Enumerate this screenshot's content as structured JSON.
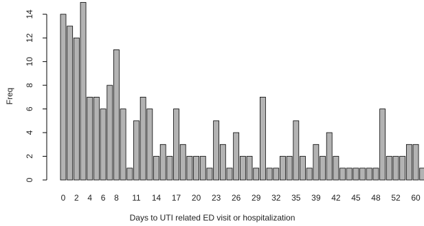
{
  "chart_data": {
    "type": "bar",
    "x_label": "Days to UTI related ED visit or hospitalization",
    "y_label": "Freq",
    "categories": [
      "0",
      null,
      "2",
      null,
      "4",
      null,
      "6",
      null,
      "8",
      null,
      null,
      "11",
      null,
      null,
      "14",
      null,
      null,
      "17",
      null,
      null,
      "20",
      null,
      null,
      "23",
      null,
      null,
      "26",
      null,
      null,
      "29",
      null,
      null,
      "32",
      null,
      null,
      "35",
      null,
      null,
      "39",
      null,
      null,
      "42",
      null,
      null,
      "45",
      null,
      null,
      "48",
      null,
      null,
      "52",
      null,
      null,
      "60",
      null
    ],
    "values": [
      14,
      13,
      12,
      15,
      7,
      7,
      6,
      8,
      11,
      6,
      1,
      5,
      7,
      6,
      2,
      3,
      2,
      6,
      3,
      2,
      2,
      2,
      1,
      5,
      3,
      1,
      4,
      2,
      2,
      1,
      7,
      1,
      1,
      2,
      2,
      5,
      2,
      1,
      3,
      2,
      4,
      2,
      1,
      1,
      1,
      1,
      1,
      1,
      6,
      2,
      2,
      2,
      3,
      3,
      1
    ],
    "color": "#b3b3b3",
    "ylim": [
      0,
      15
    ],
    "yticks": [
      0,
      2,
      4,
      6,
      8,
      10,
      12,
      14
    ]
  }
}
